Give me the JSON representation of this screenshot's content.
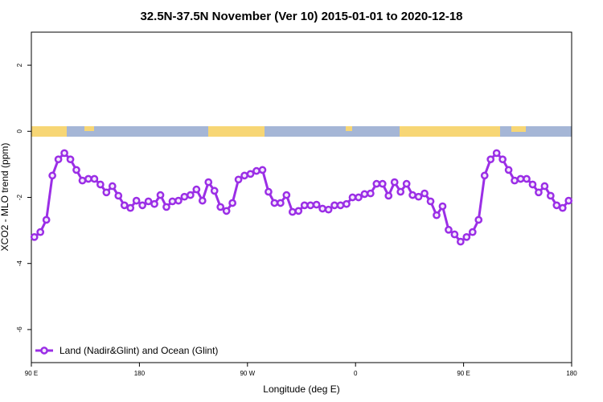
{
  "chart_data": {
    "type": "line",
    "title": "32.5N-37.5N November (Ver 10)   2015-01-01 to 2020-12-18",
    "x_label": "Longitude (deg E)",
    "y_label": "XCO2 - MLO trend (ppm)",
    "xlim": [
      90,
      540
    ],
    "ylim": [
      -7,
      3
    ],
    "xticks": [
      {
        "value": 90,
        "label": "90 E"
      },
      180,
      {
        "value": 270,
        "label": "90 W"
      },
      {
        "value": 360,
        "label": "0"
      },
      {
        "value": 450,
        "label": "90 E"
      },
      {
        "value": 540,
        "label": "180"
      }
    ],
    "yticks": [
      2,
      0,
      -2,
      -4,
      -6
    ],
    "legend": "bottom-left",
    "x": [
      92.5,
      97.5,
      102.5,
      107.5,
      112.5,
      117.5,
      122.5,
      127.5,
      132.5,
      137.5,
      142.5,
      147.5,
      152.5,
      157.5,
      162.5,
      167.5,
      172.5,
      177.5,
      182.5,
      187.5,
      192.5,
      197.5,
      202.5,
      207.5,
      212.5,
      217.5,
      222.5,
      227.5,
      232.5,
      237.5,
      242.5,
      247.5,
      252.5,
      257.5,
      262.5,
      267.5,
      272.5,
      277.5,
      282.5,
      287.5,
      292.5,
      297.5,
      302.5,
      307.5,
      312.5,
      317.5,
      322.5,
      327.5,
      332.5,
      337.5,
      342.5,
      347.5,
      352.5,
      357.5,
      362.5,
      367.5,
      372.5,
      377.5,
      382.5,
      387.5,
      392.5,
      397.5,
      402.5,
      407.5,
      412.5,
      417.5,
      422.5,
      427.5,
      432.5,
      437.5,
      442.5,
      447.5,
      452.5,
      457.5,
      462.5,
      467.5,
      472.5,
      477.5,
      482.5,
      487.5,
      492.5,
      497.5,
      502.5,
      507.5,
      512.5,
      517.5,
      522.5,
      527.5,
      532.5,
      537.5
    ],
    "series": [
      {
        "name": "Land (Nadir&Glint) and Ocean (Glint)",
        "color": "#9b2ee6",
        "values": [
          -3.2,
          -3.05,
          -2.68,
          -1.34,
          -0.85,
          -0.66,
          -0.85,
          -1.17,
          -1.49,
          -1.44,
          -1.44,
          -1.61,
          -1.85,
          -1.66,
          -1.95,
          -2.24,
          -2.32,
          -2.1,
          -2.24,
          -2.12,
          -2.2,
          -1.93,
          -2.29,
          -2.12,
          -2.1,
          -1.98,
          -1.93,
          -1.76,
          -2.1,
          -1.54,
          -1.8,
          -2.29,
          -2.41,
          -2.17,
          -1.46,
          -1.34,
          -1.29,
          -1.2,
          -1.17,
          -1.83,
          -2.17,
          -2.17,
          -1.93,
          -2.44,
          -2.41,
          -2.24,
          -2.24,
          -2.22,
          -2.34,
          -2.37,
          -2.24,
          -2.24,
          -2.2,
          -2.0,
          -2.0,
          -1.9,
          -1.88,
          -1.59,
          -1.59,
          -1.95,
          -1.54,
          -1.83,
          -1.59,
          -1.93,
          -1.98,
          -1.88,
          -2.12,
          -2.54,
          -2.27,
          -2.98,
          -3.12,
          -3.34,
          -3.2,
          -3.05,
          -2.68,
          -1.34,
          -0.85,
          -0.66,
          -0.85,
          -1.17,
          -1.49,
          -1.44,
          -1.44,
          -1.61,
          -1.85,
          -1.66,
          -1.95,
          -2.24,
          -2.32,
          -2.1
        ]
      }
    ]
  }
}
